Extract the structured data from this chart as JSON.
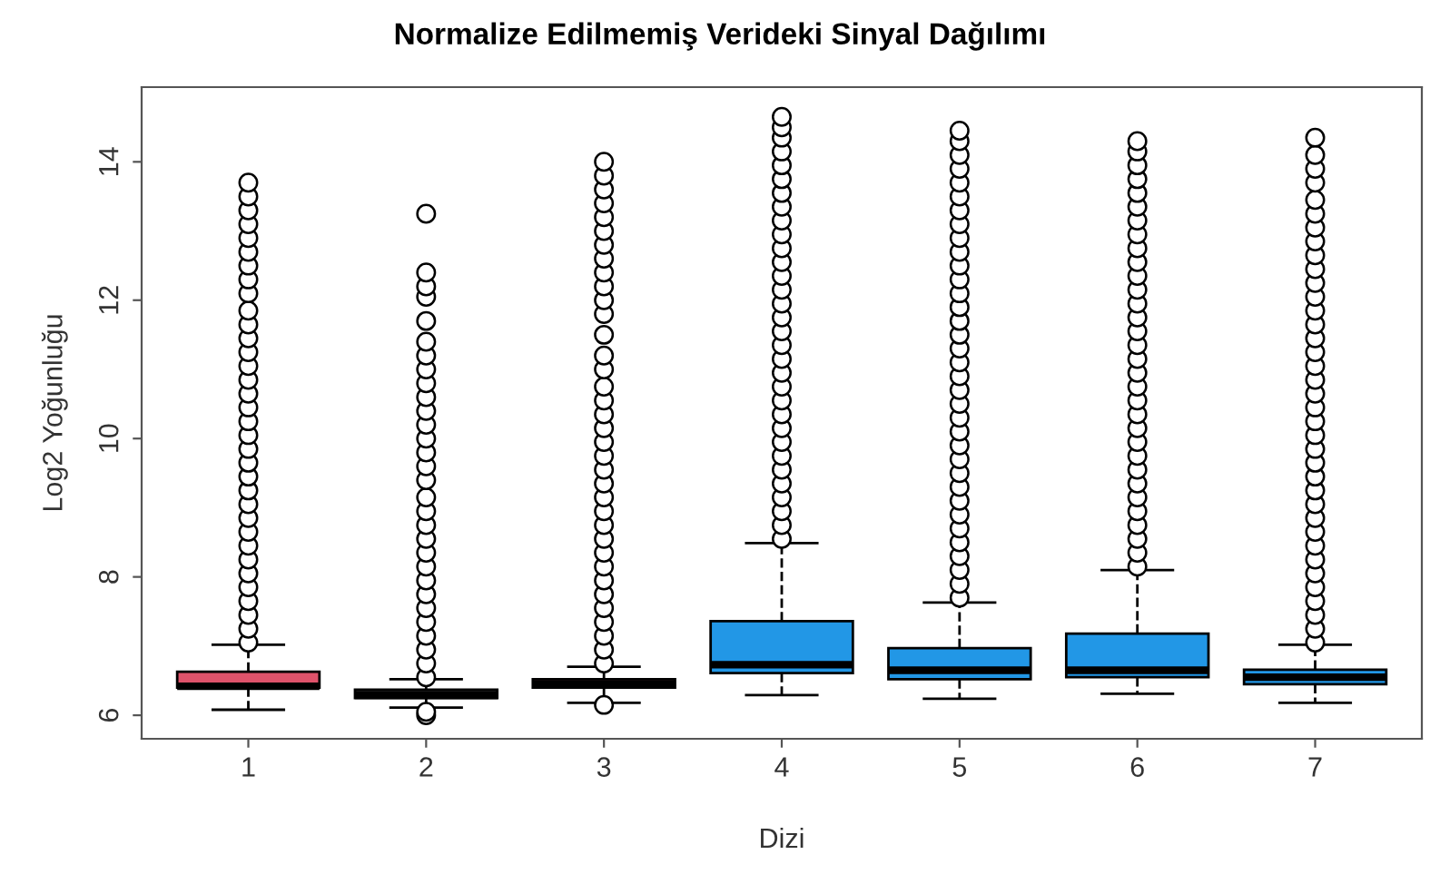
{
  "chart_data": {
    "type": "box",
    "title": "Normalize Edilmemiş Verideki Sinyal Dağılımı",
    "xlabel": "Dizi",
    "ylabel": "Log2 Yoğunluğu",
    "categories": [
      "1",
      "2",
      "3",
      "4",
      "5",
      "6",
      "7"
    ],
    "colors": [
      "#df536b",
      "#2b2b2b",
      "#6b3a44",
      "#2297e6",
      "#2297e6",
      "#2297e6",
      "#2297e6"
    ],
    "boxes": [
      {
        "low": 6.08,
        "q1": 6.4,
        "median": 6.42,
        "q3": 6.63,
        "high": 7.02,
        "outliers": [
          7.05,
          7.25,
          7.45,
          7.65,
          7.85,
          8.05,
          8.25,
          8.45,
          8.65,
          8.85,
          9.05,
          9.25,
          9.45,
          9.65,
          9.85,
          10.05,
          10.25,
          10.45,
          10.65,
          10.85,
          11.05,
          11.25,
          11.45,
          11.65,
          11.85,
          12.1,
          12.3,
          12.5,
          12.7,
          12.9,
          13.1,
          13.3,
          13.5,
          13.7
        ]
      },
      {
        "low": 6.11,
        "q1": 6.25,
        "median": 6.29,
        "q3": 6.37,
        "high": 6.52,
        "outliers": [
          6.55,
          6.75,
          6.95,
          7.15,
          7.35,
          7.55,
          7.75,
          7.95,
          8.15,
          8.35,
          8.55,
          8.75,
          8.95,
          9.15,
          9.4,
          9.6,
          9.8,
          10.0,
          10.2,
          10.4,
          10.6,
          10.8,
          11.0,
          11.2,
          11.4,
          11.7,
          12.05,
          12.2,
          12.4,
          13.25,
          6.0,
          6.05
        ]
      },
      {
        "low": 6.18,
        "q1": 6.4,
        "median": 6.45,
        "q3": 6.52,
        "high": 6.7,
        "outliers": [
          6.75,
          6.95,
          7.15,
          7.35,
          7.55,
          7.75,
          7.95,
          8.15,
          8.35,
          8.55,
          8.75,
          8.95,
          9.15,
          9.35,
          9.55,
          9.75,
          9.95,
          10.15,
          10.35,
          10.55,
          10.75,
          11.0,
          11.2,
          11.5,
          11.8,
          12.0,
          12.2,
          12.4,
          12.6,
          12.8,
          13.0,
          13.2,
          13.4,
          13.6,
          13.8,
          14.0,
          6.15
        ]
      },
      {
        "low": 6.29,
        "q1": 6.61,
        "median": 6.73,
        "q3": 7.36,
        "high": 8.49,
        "outliers": [
          8.55,
          8.75,
          8.95,
          9.15,
          9.35,
          9.55,
          9.75,
          9.95,
          10.15,
          10.35,
          10.55,
          10.75,
          10.95,
          11.15,
          11.35,
          11.55,
          11.75,
          11.95,
          12.15,
          12.35,
          12.55,
          12.75,
          12.95,
          13.15,
          13.35,
          13.55,
          13.75,
          13.95,
          14.15,
          14.35,
          14.5,
          14.65
        ]
      },
      {
        "low": 6.24,
        "q1": 6.52,
        "median": 6.65,
        "q3": 6.97,
        "high": 7.63,
        "outliers": [
          7.7,
          7.9,
          8.1,
          8.3,
          8.5,
          8.7,
          8.9,
          9.1,
          9.3,
          9.5,
          9.7,
          9.9,
          10.1,
          10.3,
          10.5,
          10.7,
          10.9,
          11.1,
          11.3,
          11.5,
          11.7,
          11.9,
          12.1,
          12.3,
          12.5,
          12.7,
          12.9,
          13.1,
          13.3,
          13.5,
          13.7,
          13.9,
          14.1,
          14.3,
          14.45
        ]
      },
      {
        "low": 6.31,
        "q1": 6.55,
        "median": 6.65,
        "q3": 7.18,
        "high": 8.1,
        "outliers": [
          8.15,
          8.35,
          8.55,
          8.75,
          8.95,
          9.15,
          9.35,
          9.55,
          9.75,
          9.95,
          10.15,
          10.35,
          10.55,
          10.75,
          10.95,
          11.15,
          11.35,
          11.55,
          11.75,
          11.95,
          12.15,
          12.35,
          12.55,
          12.75,
          12.95,
          13.15,
          13.35,
          13.55,
          13.75,
          13.95,
          14.15,
          14.3
        ]
      },
      {
        "low": 6.18,
        "q1": 6.45,
        "median": 6.55,
        "q3": 6.66,
        "high": 7.02,
        "outliers": [
          7.05,
          7.25,
          7.45,
          7.65,
          7.85,
          8.05,
          8.25,
          8.45,
          8.65,
          8.85,
          9.05,
          9.25,
          9.45,
          9.65,
          9.85,
          10.05,
          10.25,
          10.45,
          10.65,
          10.85,
          11.05,
          11.25,
          11.45,
          11.65,
          11.85,
          12.05,
          12.25,
          12.45,
          12.65,
          12.85,
          13.05,
          13.25,
          13.45,
          13.7,
          13.9,
          14.1,
          14.35
        ]
      }
    ],
    "ylim": [
      5.66,
      15.08
    ],
    "yticks": [
      6,
      8,
      10,
      12,
      14
    ],
    "grid": false,
    "legend": false,
    "marker": "circle",
    "line_style": "dashed"
  }
}
